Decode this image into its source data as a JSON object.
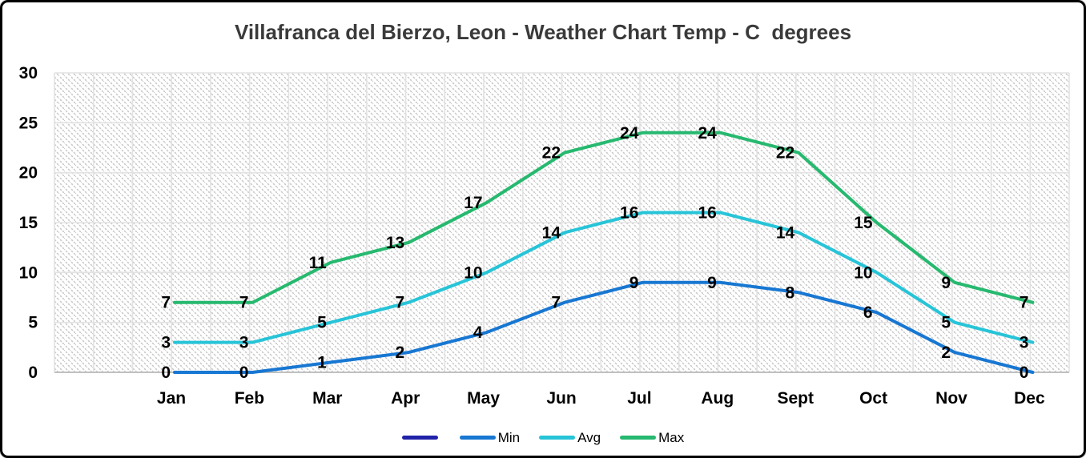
{
  "chart_data": {
    "type": "line",
    "title": "Villafranca del Bierzo, Leon - Weather Chart Temp - C  degrees",
    "categories": [
      "Jan",
      "Feb",
      "Mar",
      "Apr",
      "May",
      "Jun",
      "Jul",
      "Aug",
      "Sept",
      "Oct",
      "Nov",
      "Dec"
    ],
    "series": [
      {
        "name": "",
        "color": "#2023A8",
        "values": []
      },
      {
        "name": "Min",
        "color": "#1777D2",
        "values": [
          0,
          0,
          1,
          2,
          4,
          7,
          9,
          9,
          8,
          6,
          2,
          0
        ]
      },
      {
        "name": "Avg",
        "color": "#27C4D8",
        "values": [
          3,
          3,
          5,
          7,
          10,
          14,
          16,
          16,
          14,
          10,
          5,
          3
        ]
      },
      {
        "name": "Max",
        "color": "#26B96F",
        "values": [
          7,
          7,
          11,
          13,
          17,
          22,
          24,
          24,
          22,
          15,
          9,
          7
        ]
      }
    ],
    "ylim": [
      0,
      30
    ],
    "yticks": [
      0,
      5,
      10,
      15,
      20,
      25,
      30
    ],
    "grid": true,
    "plot_background": "diagonal-hatch",
    "data_labels": "left-of-point",
    "legend_position": "bottom"
  },
  "colors": {
    "gridline": "#E2E2E2",
    "axis_line": "#C0C0C0",
    "hatch": "#C9C9C9",
    "title_text": "#3A3A3A",
    "label_text": "#000000",
    "frame_border": "#000000"
  }
}
